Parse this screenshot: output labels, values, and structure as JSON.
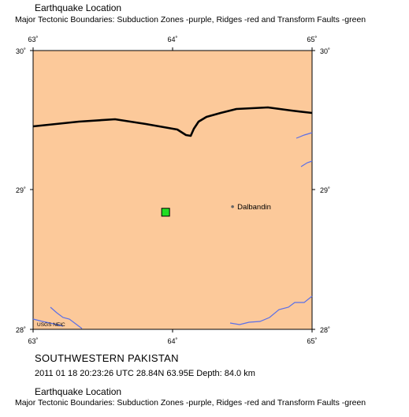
{
  "header": {
    "title": "Earthquake Location",
    "subtitle": "Major Tectonic Boundaries: Subduction Zones -purple, Ridges -red and Transform Faults -green"
  },
  "map": {
    "lon_range": [
      63,
      65
    ],
    "lat_range": [
      28,
      30
    ],
    "top_ticks": [
      "63˚",
      "64˚",
      "65˚"
    ],
    "bottom_ticks": [
      "63˚",
      "64˚",
      "65˚"
    ],
    "left_ticks": [
      "30˚",
      "29˚",
      "28˚"
    ],
    "right_ticks": [
      "30˚",
      "29˚",
      "28˚"
    ],
    "land_color": "#fcc99a",
    "border_color": "#000000",
    "river_color": "#5a6fe8",
    "city": {
      "name": "Dalbandin",
      "lat": 28.88,
      "lon": 64.43
    },
    "epicenter": {
      "lat": 28.84,
      "lon": 63.95,
      "color": "#22dd22",
      "icon": "square-marker-icon"
    },
    "credit": "USGS NEIC"
  },
  "event": {
    "region": "SOUTHWESTERN PAKISTAN",
    "details": "2011 01 18 20:23:26 UTC 28.84N 63.95E Depth: 84.0 km"
  },
  "footer": {
    "title": "Earthquake Location",
    "subtitle": "Major Tectonic Boundaries: Subduction Zones -purple, Ridges -red and Transform Faults -green"
  }
}
